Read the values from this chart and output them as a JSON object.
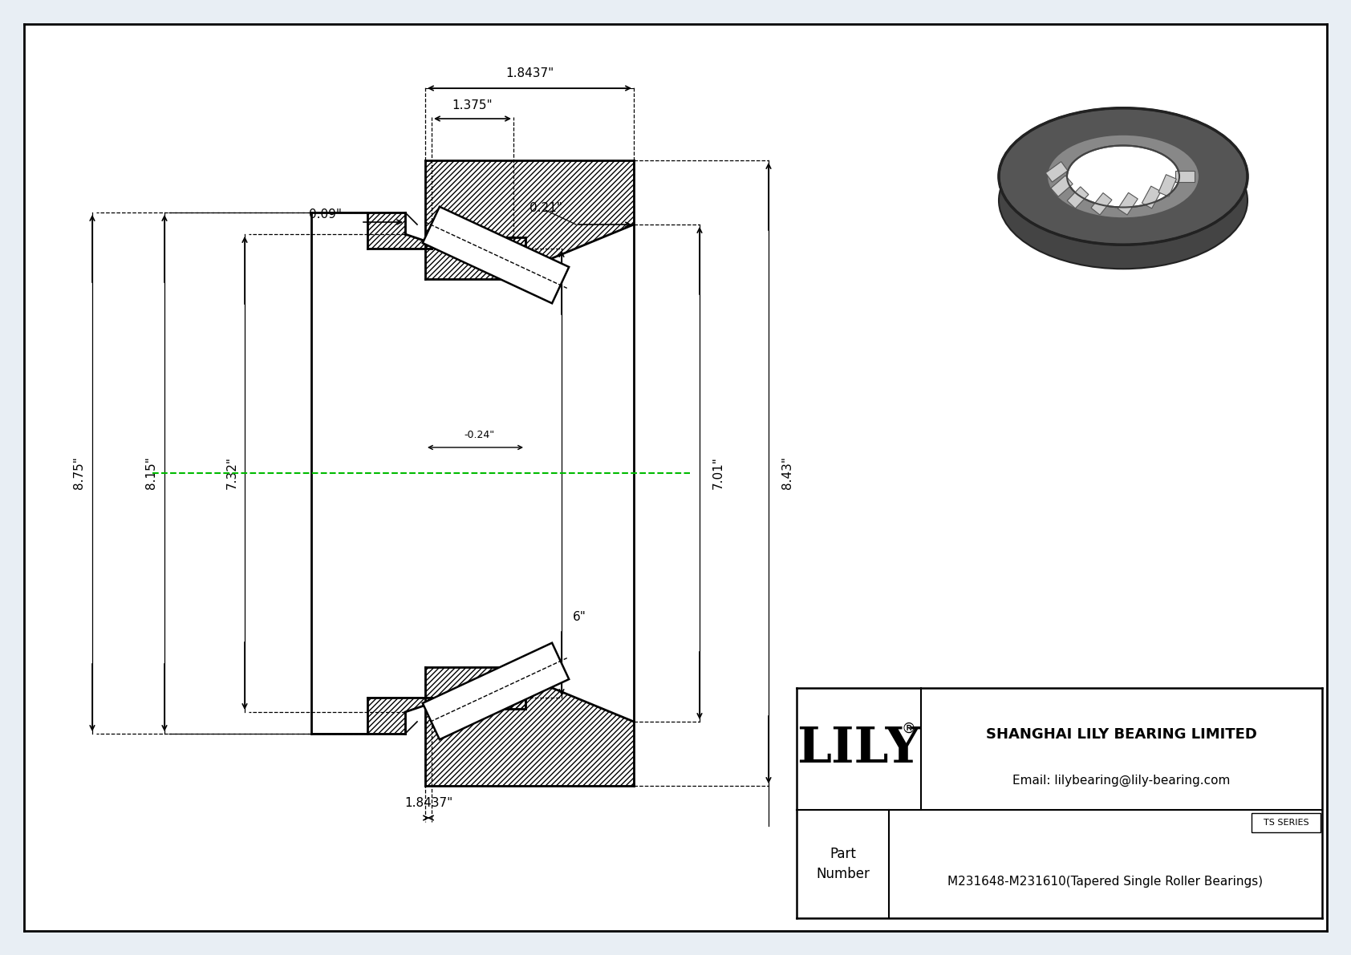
{
  "bg_color": "#e8eef4",
  "drawing_bg": "#ffffff",
  "company": "SHANGHAI LILY BEARING LIMITED",
  "email": "Email: lilybearing@lily-bearing.com",
  "part_number": "M231648-M231610(Tapered Single Roller Bearings)",
  "series": "TS SERIES",
  "dim_1_8437_top": "1.8437\"",
  "dim_1_375": "1.375\"",
  "dim_0_21": "0.21\"",
  "dim_0_09": "0.09\"",
  "dim_8_75": "8.75\"",
  "dim_8_15": "8.15\"",
  "dim_7_32": "7.32\"",
  "dim_neg_0_24": "-0.24\"",
  "dim_1_8437_bot": "1.8437\"",
  "dim_6": "6\"",
  "dim_7_01": "7.01\"",
  "dim_8_43": "8.43\"",
  "line_color": "#000000",
  "green_line_color": "#00bb00",
  "font_size_dim": 11,
  "font_size_company": 13,
  "font_size_email": 11,
  "font_size_lily": 44,
  "font_size_ts": 8,
  "font_size_pn": 11
}
